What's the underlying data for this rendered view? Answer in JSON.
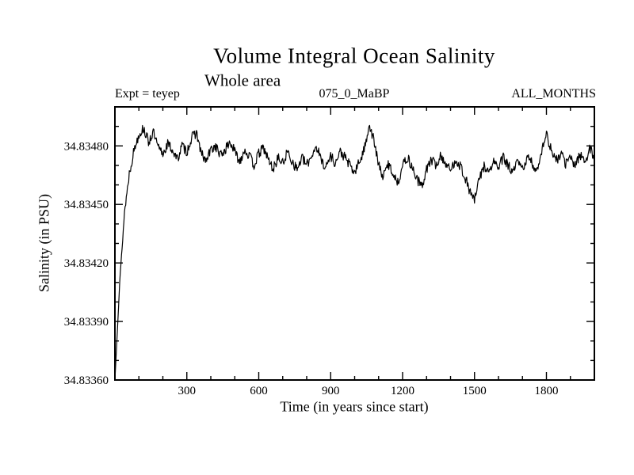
{
  "chart_data": {
    "type": "line",
    "title": "Volume Integral Ocean Salinity",
    "subtitle": "Whole area",
    "annotations": {
      "left": "Expt = teyep",
      "center": "075_0_MaBP",
      "right": "ALL_MONTHS"
    },
    "xlabel": "Time (in years since start)",
    "ylabel": "Salinity (in PSU)",
    "xlim": [
      0,
      2000
    ],
    "ylim": [
      34.8336,
      34.835
    ],
    "x_major_ticks": [
      300,
      600,
      900,
      1200,
      1500,
      1800
    ],
    "x_tick_labels": [
      "300",
      "600",
      "900",
      "1200",
      "1500",
      "1800"
    ],
    "x_minor_step": 100,
    "y_major_ticks": [
      34.8336,
      34.8339,
      34.8342,
      34.8345,
      34.8348
    ],
    "y_tick_labels": [
      "34.83360",
      "34.83390",
      "34.83420",
      "34.83450",
      "34.83480"
    ],
    "y_minor_step": 0.0001,
    "grid": false,
    "line_color": "#000000",
    "background_color": "#ffffff",
    "noise": {
      "amplitude": 2.6e-05,
      "seed": 13,
      "substeps": 8,
      "ramp_in_years": 60
    },
    "series": [
      {
        "name": "ALL_MONTHS",
        "x_start": 0,
        "x_step": 20,
        "y": [
          34.8336,
          34.8341,
          34.83446,
          34.83466,
          34.83478,
          34.83486,
          34.83489,
          34.83482,
          34.83487,
          34.83479,
          34.83476,
          34.83481,
          34.83478,
          34.83473,
          34.8348,
          34.83477,
          34.83484,
          34.83487,
          34.83476,
          34.83472,
          34.83478,
          34.8348,
          34.83475,
          34.83478,
          34.83482,
          34.83477,
          34.83472,
          34.83478,
          34.83475,
          34.8347,
          34.83476,
          34.83479,
          34.83473,
          34.83468,
          34.83474,
          34.83471,
          34.83477,
          34.83472,
          34.83468,
          34.83474,
          34.8347,
          34.83475,
          34.8348,
          34.83473,
          34.83469,
          34.83475,
          34.83471,
          34.83477,
          34.83474,
          34.8347,
          34.83466,
          34.83472,
          34.83478,
          34.83491,
          34.83483,
          34.8347,
          34.83464,
          34.83471,
          34.83466,
          34.83461,
          34.8347,
          34.83474,
          34.83469,
          34.83463,
          34.83459,
          34.83468,
          34.83473,
          34.8347,
          34.83475,
          34.83471,
          34.83467,
          34.83473,
          34.8347,
          34.83464,
          34.83457,
          34.83452,
          34.83463,
          34.8347,
          34.83466,
          34.83472,
          34.83469,
          34.83474,
          34.8347,
          34.83466,
          34.83472,
          34.83468,
          34.83474,
          34.83471,
          34.83467,
          34.83478,
          34.83486,
          34.83478,
          34.83472,
          34.83476,
          34.83471,
          34.83474,
          34.8347,
          34.83476,
          34.83472,
          34.83478,
          34.83475
        ]
      }
    ]
  }
}
